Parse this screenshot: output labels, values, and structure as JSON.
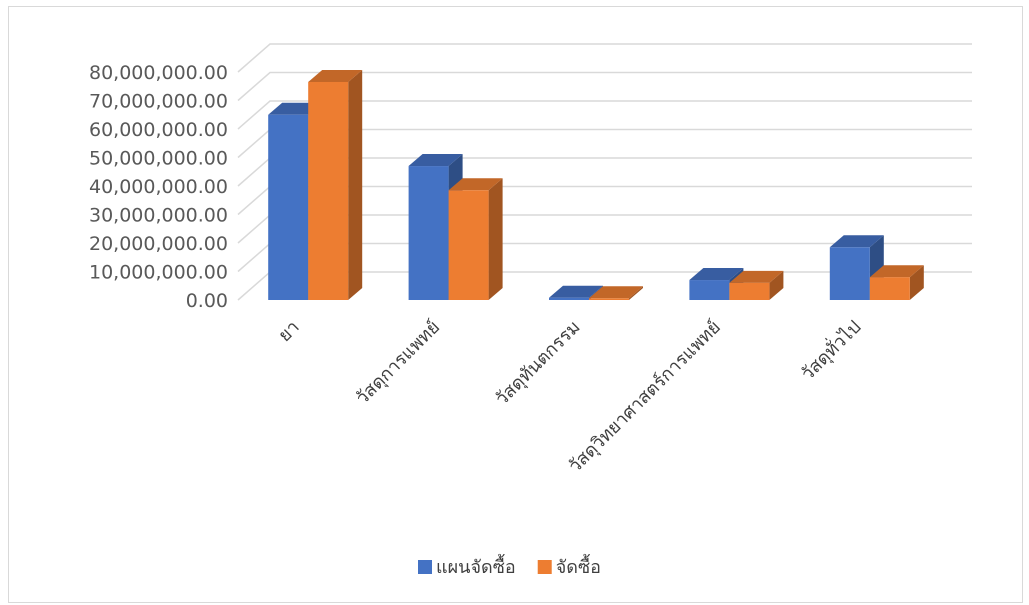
{
  "chart_data": {
    "type": "bar",
    "categories": [
      "ยา",
      "วัสดุการแพทย์",
      "วัสดุทันตกรรม",
      "วัสดุวิทยาศาสตร์การแพทย์",
      "วัสดุทั่วไป"
    ],
    "series": [
      {
        "name": "แผนจัดซื้อ",
        "values": [
          65000000,
          47000000,
          800000,
          7000000,
          18500000
        ],
        "color": "#4472C4"
      },
      {
        "name": "จัดซื้อ",
        "values": [
          76500000,
          38500000,
          600000,
          6000000,
          8000000
        ],
        "color": "#ED7D31"
      }
    ],
    "y_ticks": [
      "0.00",
      "10,000,000.00",
      "20,000,000.00",
      "30,000,000.00",
      "40,000,000.00",
      "50,000,000.00",
      "60,000,000.00",
      "70,000,000.00",
      "80,000,000.00"
    ],
    "ylim": [
      0,
      80000000
    ],
    "grid": true,
    "legend": "bottom",
    "style": "3d-clustered-column"
  }
}
